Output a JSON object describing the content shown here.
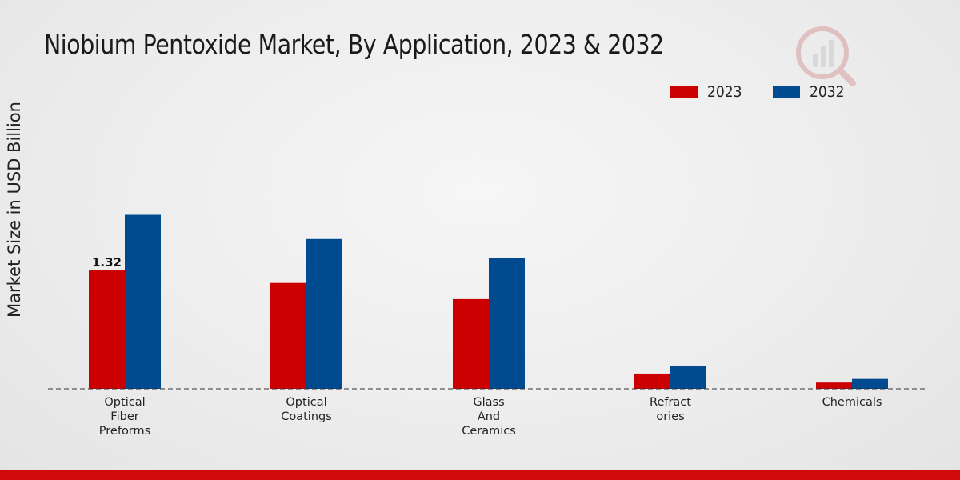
{
  "chart_data": {
    "type": "bar",
    "title": "Niobium Pentoxide Market, By Application, 2023 & 2032",
    "xlabel": "",
    "ylabel": "Market Size in USD Billion",
    "categories": [
      [
        "Optical",
        "Fiber",
        "Preforms"
      ],
      [
        "Optical",
        "Coatings"
      ],
      [
        "Glass",
        "And",
        "Ceramics"
      ],
      [
        "Refract",
        "ories"
      ],
      [
        "Chemicals"
      ]
    ],
    "series": [
      {
        "name": "2023",
        "color": "#cc0000",
        "values": [
          1.32,
          1.18,
          1.0,
          0.17,
          0.07
        ]
      },
      {
        "name": "2032",
        "color": "#004a8f",
        "values": [
          1.94,
          1.67,
          1.46,
          0.25,
          0.11
        ]
      }
    ],
    "data_labels": [
      {
        "series": 0,
        "index": 0,
        "text": "1.32"
      }
    ],
    "ylim": [
      0,
      3.8
    ],
    "grid": false,
    "legend_position": "top-right"
  },
  "watermark_icon": "market-research-logo-icon"
}
